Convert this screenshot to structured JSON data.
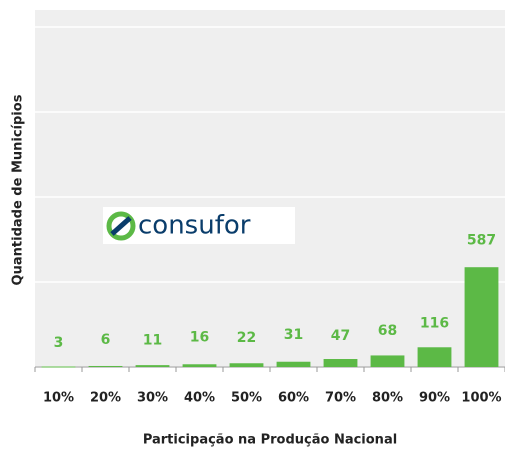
{
  "chart_data": {
    "type": "bar",
    "xlabel": "Participação na Produção Nacional",
    "ylabel": "Quantidade de Municípios",
    "watermark": "consufor",
    "categories": [
      "10%",
      "20%",
      "30%",
      "40%",
      "50%",
      "60%",
      "70%",
      "80%",
      "90%",
      "100%"
    ],
    "values": [
      3,
      6,
      11,
      16,
      22,
      31,
      47,
      68,
      116,
      587
    ],
    "color": "#5cb946",
    "ylim": [
      0,
      2100
    ],
    "yticks": [
      0,
      500,
      1000,
      1500,
      2000
    ],
    "grid": true
  }
}
